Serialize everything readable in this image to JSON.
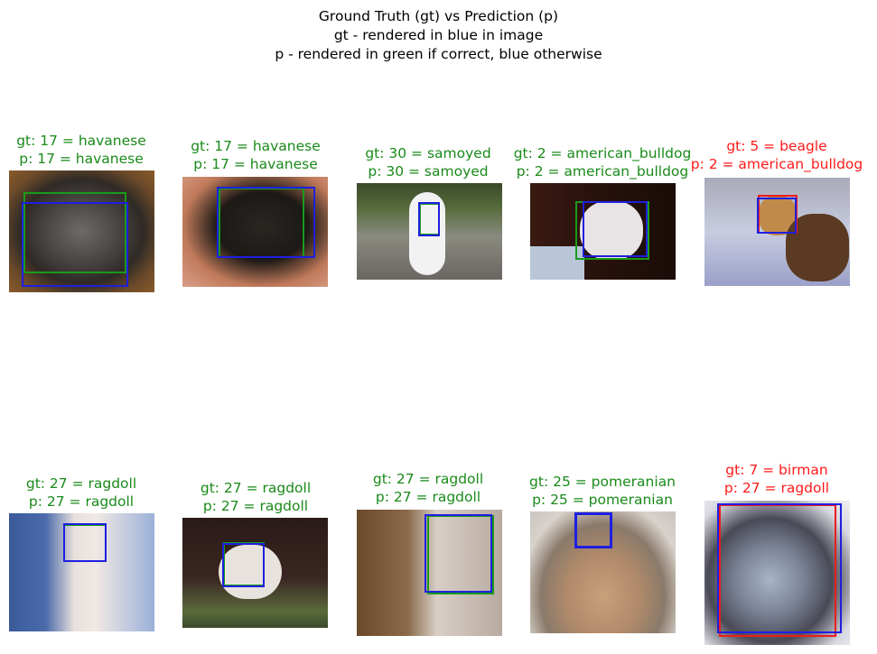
{
  "figure": {
    "title_lines": [
      "Ground Truth (gt) vs Prediction (p)",
      "gt - rendered in blue in image",
      "p - rendered in green if correct, blue otherwise"
    ]
  },
  "panels": [
    {
      "gt": "gt: 17 = havanese",
      "p": "p: 17 = havanese",
      "status": "correct"
    },
    {
      "gt": "gt: 17 = havanese",
      "p": "p: 17 = havanese",
      "status": "correct"
    },
    {
      "gt": "gt: 30 = samoyed",
      "p": "p: 30 = samoyed",
      "status": "correct"
    },
    {
      "gt": "gt: 2 = american_bulldog",
      "p": "p: 2 = american_bulldog",
      "status": "correct"
    },
    {
      "gt": "gt: 5 = beagle",
      "p": "p: 2 = american_bulldog",
      "status": "incorrect"
    },
    {
      "gt": "gt: 27 = ragdoll",
      "p": "p: 27 = ragdoll",
      "status": "correct"
    },
    {
      "gt": "gt: 27 = ragdoll",
      "p": "p: 27 = ragdoll",
      "status": "correct"
    },
    {
      "gt": "gt: 27 = ragdoll",
      "p": "p: 27 = ragdoll",
      "status": "correct"
    },
    {
      "gt": "gt: 25 = pomeranian",
      "p": "p: 25 = pomeranian",
      "status": "correct"
    },
    {
      "gt": "gt: 7 = birman",
      "p": "p: 27 = ragdoll",
      "status": "incorrect"
    }
  ],
  "colors": {
    "correct": "#1a8a1a",
    "incorrect": "#ff1a1a",
    "gt_box": "#1f1fe0",
    "pred_box_correct": "#1a9a1a",
    "pred_box_incorrect": "#ee1c1c"
  }
}
